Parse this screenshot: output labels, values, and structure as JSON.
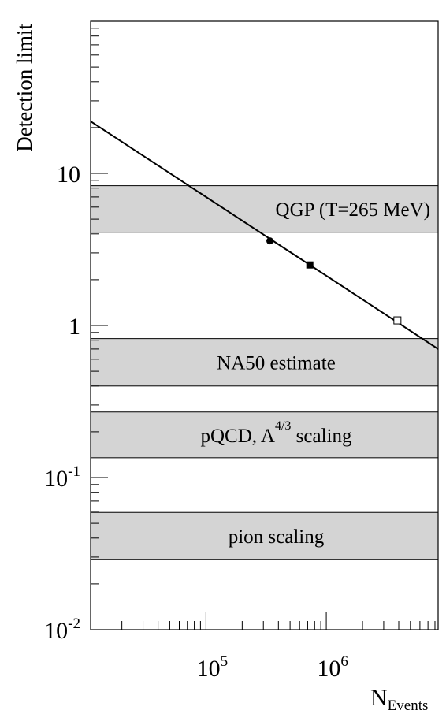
{
  "chart_data": {
    "type": "line",
    "ylabel": "Detection limit",
    "xlabel": {
      "main": "N",
      "sub": "Events"
    },
    "x_scale": "log",
    "y_scale": "log",
    "xlim": [
      11000,
      8500000
    ],
    "ylim": [
      0.01,
      100
    ],
    "x_ticks": [
      {
        "base": "10",
        "exp": "5",
        "value": 100000
      },
      {
        "base": "10",
        "exp": "6",
        "value": 1000000
      }
    ],
    "y_ticks": [
      {
        "base": "10",
        "exp": "-2",
        "value": 0.01
      },
      {
        "base": "10",
        "exp": "-1",
        "value": 0.1
      },
      {
        "base": "1",
        "exp": "",
        "value": 1
      },
      {
        "base": "10",
        "exp": "",
        "value": 10
      }
    ],
    "line": {
      "x": [
        11000,
        8500000
      ],
      "y": [
        22,
        0.7
      ]
    },
    "points": [
      {
        "x": 340000,
        "y": 3.6,
        "marker": "filled-circle"
      },
      {
        "x": 730000,
        "y": 2.5,
        "marker": "filled-square"
      },
      {
        "x": 3900000,
        "y": 1.08,
        "marker": "open-square"
      }
    ],
    "bands": [
      {
        "label": "QGP (T=265 MeV)",
        "ymin": 4.1,
        "ymax": 8.3,
        "align": "right"
      },
      {
        "label": "NA50 estimate",
        "ymin": 0.4,
        "ymax": 0.82,
        "align": "center"
      },
      {
        "label": {
          "pre": "pQCD, A",
          "sup": "4/3",
          "post": " scaling"
        },
        "ymin": 0.135,
        "ymax": 0.27,
        "align": "center"
      },
      {
        "label": "pion scaling",
        "ymin": 0.029,
        "ymax": 0.059,
        "align": "center"
      }
    ],
    "grid": false
  }
}
